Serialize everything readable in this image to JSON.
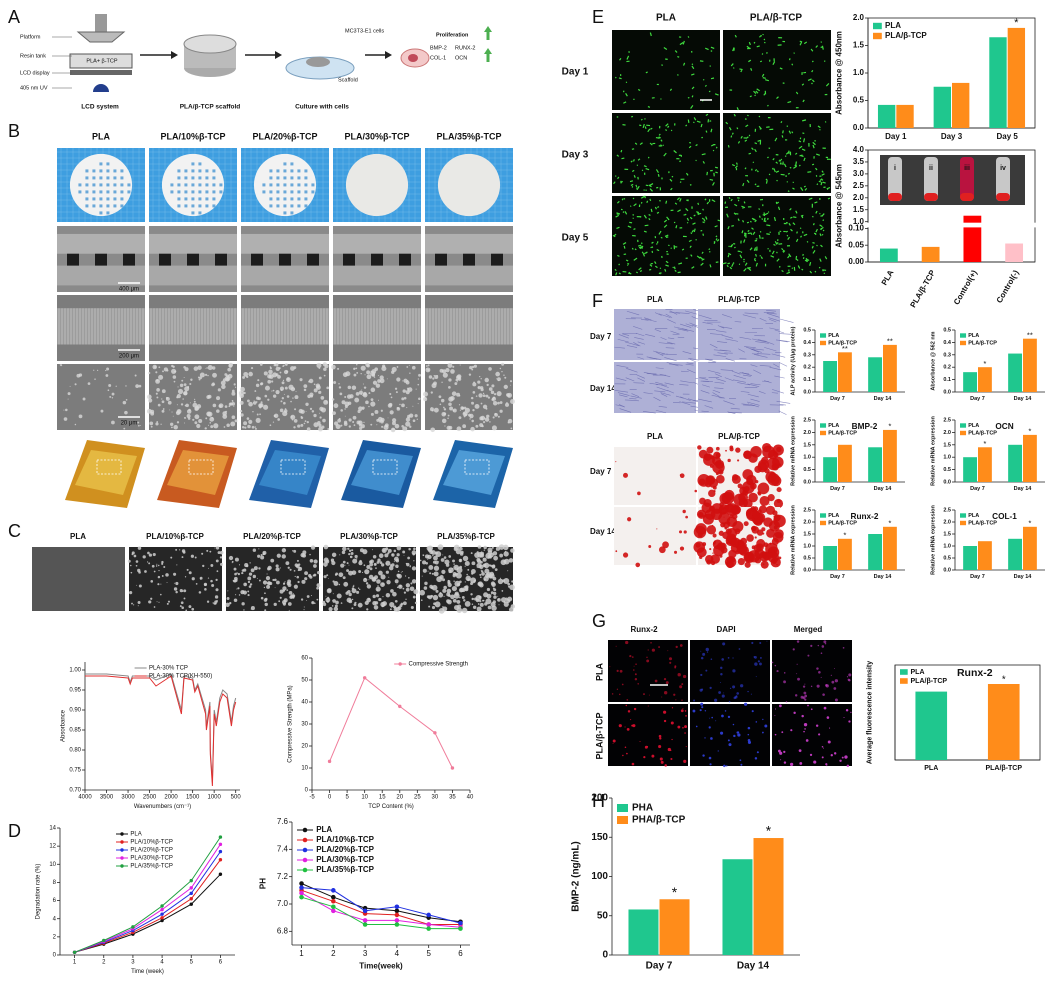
{
  "figure": {
    "panel_labels": [
      "A",
      "B",
      "C",
      "D",
      "E",
      "F",
      "G",
      "H"
    ],
    "a": {
      "platform": "Platform",
      "resin_tank": "Resin tank",
      "resin": "PLA+ β-TCP",
      "lcd": "LCD display",
      "uv": "405 nm UV",
      "system": "LCD system",
      "scaffold_step": "PLA/β-TCP scaffold",
      "cells": "MC3T3-E1 cells",
      "scaffold": "Scaffold",
      "culture": "Culture with cells",
      "proliferation": "Proliferation",
      "markers": [
        "BMP-2",
        "RUNX-2",
        "COL-1",
        "OCN"
      ]
    },
    "b": {
      "columns": [
        "PLA",
        "PLA/10%β-TCP",
        "PLA/20%β-TCP",
        "PLA/30%β-TCP",
        "PLA/35%β-TCP"
      ],
      "scale_bars": [
        "400 μm",
        "200 μm",
        "20 μm"
      ]
    },
    "c": {
      "columns": [
        "PLA",
        "PLA/10%β-TCP",
        "PLA/20%β-TCP",
        "PLA/30%β-TCP",
        "PLA/35%β-TCP"
      ]
    },
    "e": {
      "columns": [
        "PLA",
        "PLA/β-TCP"
      ],
      "rows": [
        "Day 1",
        "Day 3",
        "Day 5"
      ],
      "inset": [
        "i",
        "ii",
        "iii",
        "iv"
      ]
    },
    "f": {
      "columns": [
        "PLA",
        "PLA/β-TCP"
      ],
      "rows": [
        "Day 7",
        "Day 14"
      ]
    },
    "g": {
      "columns": [
        "Runx-2",
        "DAPI",
        "Merged"
      ],
      "rows": [
        "PLA",
        "PLA/β-TCP"
      ]
    }
  },
  "chart_data": [
    {
      "type": "line",
      "x": [
        4000,
        3500,
        3000,
        2950,
        2900,
        2500,
        2350,
        2000,
        1760,
        1700,
        1500,
        1450,
        1380,
        1200,
        1180,
        1100,
        1090,
        1040,
        1000,
        950,
        870,
        800,
        700,
        600,
        550,
        500
      ],
      "series": [
        {
          "name": "PLA-30% TCP",
          "color": "#888888",
          "values": [
            0.99,
            0.99,
            0.985,
            0.97,
            0.985,
            0.985,
            0.975,
            0.99,
            0.9,
            0.985,
            0.98,
            0.95,
            0.965,
            0.9,
            0.86,
            0.92,
            0.8,
            0.72,
            0.9,
            0.87,
            0.93,
            0.95,
            0.94,
            0.87,
            0.91,
            0.93
          ]
        },
        {
          "name": "PLA-30% TCP(KH-550)",
          "color": "#e03030",
          "values": [
            0.985,
            0.985,
            0.98,
            0.965,
            0.98,
            0.98,
            0.96,
            0.985,
            0.89,
            0.98,
            0.975,
            0.945,
            0.96,
            0.89,
            0.85,
            0.91,
            0.79,
            0.71,
            0.89,
            0.86,
            0.92,
            0.94,
            0.93,
            0.86,
            0.9,
            0.92
          ]
        }
      ],
      "xlim": [
        4000,
        400
      ],
      "xticks": [
        4000,
        3500,
        3000,
        2500,
        2000,
        1500,
        1000,
        500
      ],
      "ylim": [
        0.7,
        1.02
      ],
      "yticks": [
        {
          "value": 0.7,
          "label": "0.70"
        },
        0.75,
        {
          "value": 0.8,
          "label": "0.80"
        },
        0.85,
        {
          "value": 0.9,
          "label": "0.90"
        },
        0.95,
        {
          "value": 1,
          "label": "1.00"
        }
      ],
      "xlabel": "Wavenumbers (cm⁻¹)",
      "ylabel": "Absorbance",
      "legend": "upper center"
    },
    {
      "type": "line",
      "x": [
        0,
        10,
        20,
        30,
        35
      ],
      "series": [
        {
          "name": "Compressive Strength",
          "color": "#f07c9a",
          "values": [
            13,
            51,
            38,
            26,
            10
          ]
        }
      ],
      "markers": true,
      "xlim": [
        -5,
        40
      ],
      "xticks": [
        -5,
        0,
        5,
        10,
        15,
        20,
        25,
        30,
        35,
        40
      ],
      "ylim": [
        0,
        60
      ],
      "yticks": [
        0,
        10,
        20,
        30,
        40,
        50,
        60
      ],
      "xlabel": "TCP Content (%)",
      "ylabel": "Compressive Strength (MPa)",
      "legend": "upper right"
    },
    {
      "type": "line",
      "x": [
        1,
        2,
        3,
        4,
        5,
        6
      ],
      "markers": true,
      "series": [
        {
          "name": "PLA",
          "color": "#111111",
          "values": [
            0.3,
            1.2,
            2.3,
            3.8,
            5.6,
            8.9
          ]
        },
        {
          "name": "PLA/10%β-TCP",
          "color": "#e02020",
          "values": [
            0.3,
            1.3,
            2.5,
            4.1,
            6.2,
            10.5
          ]
        },
        {
          "name": "PLA/20%β-TCP",
          "color": "#2030e0",
          "values": [
            0.3,
            1.4,
            2.7,
            4.5,
            6.8,
            11.4
          ]
        },
        {
          "name": "PLA/30%β-TCP",
          "color": "#e020e0",
          "values": [
            0.3,
            1.5,
            2.9,
            5,
            7.4,
            12.2
          ]
        },
        {
          "name": "PLA/35%β-TCP",
          "color": "#20a040",
          "values": [
            0.3,
            1.6,
            3.1,
            5.4,
            8.2,
            13
          ]
        }
      ],
      "xlim": [
        0.5,
        6.5
      ],
      "xticks": [
        1,
        2,
        3,
        4,
        5,
        6
      ],
      "ylim": [
        0,
        14
      ],
      "yticks": [
        0,
        2,
        4,
        6,
        8,
        10,
        12,
        14
      ],
      "xlabel": "Time (week)",
      "ylabel": "Degradation rate (%)",
      "legend": "upper center"
    },
    {
      "type": "line",
      "x": [
        1,
        2,
        3,
        4,
        5,
        6
      ],
      "markers": true,
      "series": [
        {
          "name": "PLA",
          "color": "#111111",
          "values": [
            7.15,
            7.05,
            6.97,
            6.95,
            6.9,
            6.87
          ]
        },
        {
          "name": "PLA/10%β-TCP",
          "color": "#e02020",
          "values": [
            7.1,
            7.02,
            6.93,
            6.92,
            6.85,
            6.85
          ]
        },
        {
          "name": "PLA/20%β-TCP",
          "color": "#2030e0",
          "values": [
            7.12,
            7.1,
            6.95,
            6.98,
            6.92,
            6.86
          ]
        },
        {
          "name": "PLA/30%β-TCP",
          "color": "#e020e0",
          "values": [
            7.08,
            6.95,
            6.88,
            6.88,
            6.85,
            6.83
          ]
        },
        {
          "name": "PLA/35%β-TCP",
          "color": "#20c040",
          "values": [
            7.05,
            6.98,
            6.85,
            6.85,
            6.82,
            6.82
          ]
        }
      ],
      "xlim": [
        0.7,
        6.3
      ],
      "xticks": [
        1,
        2,
        3,
        4,
        5,
        6
      ],
      "ylim": [
        6.7,
        7.6
      ],
      "yticks": [
        6.8,
        {
          "value": 7,
          "label": "7.0"
        },
        7.2,
        7.4,
        7.6
      ],
      "xlabel": "Time(week)",
      "ylabel": "PH",
      "legend": "upper left"
    },
    {
      "type": "bar",
      "categories": [
        "Day 1",
        "Day 3",
        "Day 5"
      ],
      "series": [
        {
          "name": "PLA",
          "color": "#1fc78e",
          "values": [
            0.42,
            0.75,
            1.65
          ]
        },
        {
          "name": "PLA/β-TCP",
          "color": "#ff8c1a",
          "values": [
            0.42,
            0.82,
            1.82
          ],
          "annotations": [
            null,
            null,
            "*"
          ]
        }
      ],
      "ylim": [
        0,
        2
      ],
      "yticks": [
        {
          "value": 0,
          "label": "0.0"
        },
        0.5,
        {
          "value": 1,
          "label": "1.0"
        },
        1.5,
        {
          "value": 2,
          "label": "2.0"
        }
      ],
      "ylabel": "Absorbance @ 450nm",
      "legend": "upper left"
    },
    {
      "type": "bar",
      "categories": [
        "PLA",
        "PLA/β-TCP",
        "Control(+)",
        "Control(-)"
      ],
      "series": [
        {
          "values": [
            0.04,
            0.045,
            1.25,
            0.055
          ],
          "colors": [
            "#1fc78e",
            "#ff8c1a",
            "#ff0000",
            "#ffc0c8"
          ]
        }
      ],
      "ylim": [
        0,
        4
      ],
      "ybreak": [
        0.1,
        1
      ],
      "yticks": [
        {
          "value": 0,
          "label": "0.00"
        },
        0.05,
        {
          "value": 0.1,
          "label": "0.10"
        },
        {
          "value": 1,
          "label": "1.0"
        },
        1.5,
        {
          "value": 2,
          "label": "2.0"
        },
        2.5,
        {
          "value": 3,
          "label": "3.0"
        },
        3.5,
        {
          "value": 4,
          "label": "4.0"
        }
      ],
      "ylabel": "Absorbance @ 545nm"
    },
    {
      "type": "bar",
      "categories": [
        "Day 7",
        "Day 14"
      ],
      "series": [
        {
          "name": "PLA",
          "color": "#1fc78e",
          "values": [
            0.25,
            0.28
          ]
        },
        {
          "name": "PLA/β-TCP",
          "color": "#ff8c1a",
          "values": [
            0.32,
            0.38
          ],
          "annotations": [
            "**",
            "**"
          ]
        }
      ],
      "ylim": [
        0,
        0.5
      ],
      "yticks": [
        {
          "value": 0,
          "label": "0.0"
        },
        0.1,
        0.2,
        0.3,
        0.4,
        0.5
      ],
      "ylabel": "ALP activity (U/μg protein)",
      "legend": "upper left"
    },
    {
      "type": "bar",
      "categories": [
        "Day 7",
        "Day 14"
      ],
      "series": [
        {
          "name": "PLA",
          "color": "#1fc78e",
          "values": [
            0.16,
            0.31
          ]
        },
        {
          "name": "PLA/β-TCP",
          "color": "#ff8c1a",
          "values": [
            0.2,
            0.43
          ],
          "annotations": [
            "*",
            "**"
          ]
        }
      ],
      "ylim": [
        0,
        0.5
      ],
      "yticks": [
        {
          "value": 0,
          "label": "0.0"
        },
        0.1,
        0.2,
        0.3,
        0.4,
        0.5
      ],
      "ylabel": "Absorbance @ 562 nm",
      "legend": "upper left"
    },
    {
      "type": "bar",
      "title": "BMP-2",
      "categories": [
        "Day 7",
        "Day 14"
      ],
      "series": [
        {
          "name": "PLA",
          "color": "#1fc78e",
          "values": [
            1,
            1.4
          ]
        },
        {
          "name": "PLA/β-TCP",
          "color": "#ff8c1a",
          "values": [
            1.5,
            2.1
          ],
          "annotations": [
            null,
            "*"
          ]
        }
      ],
      "ylim": [
        0,
        2.5
      ],
      "yticks": [
        {
          "value": 0,
          "label": "0.0"
        },
        0.5,
        {
          "value": 1,
          "label": "1.0"
        },
        1.5,
        {
          "value": 2,
          "label": "2.0"
        },
        2.5
      ],
      "ylabel": "Relative mRNA expression",
      "legend": "upper left"
    },
    {
      "type": "bar",
      "title": "OCN",
      "categories": [
        "Day 7",
        "Day 14"
      ],
      "series": [
        {
          "name": "PLA",
          "color": "#1fc78e",
          "values": [
            1,
            1.5
          ]
        },
        {
          "name": "PLA/β-TCP",
          "color": "#ff8c1a",
          "values": [
            1.4,
            1.9
          ],
          "annotations": [
            "*",
            "*"
          ]
        }
      ],
      "ylim": [
        0,
        2.5
      ],
      "yticks": [
        {
          "value": 0,
          "label": "0.0"
        },
        0.5,
        {
          "value": 1,
          "label": "1.0"
        },
        1.5,
        {
          "value": 2,
          "label": "2.0"
        },
        2.5
      ],
      "ylabel": "Relative mRNA expression",
      "legend": "upper left"
    },
    {
      "type": "bar",
      "title": "Runx-2",
      "categories": [
        "Day 7",
        "Day 14"
      ],
      "series": [
        {
          "name": "PLA",
          "color": "#1fc78e",
          "values": [
            1,
            1.5
          ]
        },
        {
          "name": "PLA/β-TCP",
          "color": "#ff8c1a",
          "values": [
            1.3,
            1.8
          ],
          "annotations": [
            "*",
            "*"
          ]
        }
      ],
      "ylim": [
        0,
        2.5
      ],
      "yticks": [
        {
          "value": 0,
          "label": "0.0"
        },
        0.5,
        {
          "value": 1,
          "label": "1.0"
        },
        1.5,
        {
          "value": 2,
          "label": "2.0"
        },
        2.5
      ],
      "ylabel": "Relative mRNA expression",
      "legend": "upper left"
    },
    {
      "type": "bar",
      "title": "COL-1",
      "categories": [
        "Day 7",
        "Day 14"
      ],
      "series": [
        {
          "name": "PLA",
          "color": "#1fc78e",
          "values": [
            1,
            1.3
          ]
        },
        {
          "name": "PLA/β-TCP",
          "color": "#ff8c1a",
          "values": [
            1.2,
            1.8
          ],
          "annotations": [
            null,
            "*"
          ]
        }
      ],
      "ylim": [
        0,
        2.5
      ],
      "yticks": [
        {
          "value": 0,
          "label": "0.0"
        },
        0.5,
        {
          "value": 1,
          "label": "1.0"
        },
        1.5,
        {
          "value": 2,
          "label": "2.0"
        },
        2.5
      ],
      "ylabel": "Relative mRNA expression",
      "legend": "upper left"
    },
    {
      "type": "bar",
      "title": "Runx-2",
      "categories": [
        "PLA",
        "PLA/β-TCP"
      ],
      "series": [
        {
          "values": [
            72,
            80
          ],
          "colors": [
            "#1fc78e",
            "#ff8c1a"
          ],
          "annotations": [
            null,
            "*"
          ]
        }
      ],
      "ylim": [
        0,
        100
      ],
      "ylabel": "Average fluorescence intensity",
      "legend": "upper left"
    },
    {
      "type": "bar",
      "categories": [
        "Day 7",
        "Day 14"
      ],
      "series": [
        {
          "name": "PHA",
          "color": "#1fc78e",
          "values": [
            58,
            122
          ]
        },
        {
          "name": "PHA/β-TCP",
          "color": "#ff8c1a",
          "values": [
            71,
            149
          ],
          "annotations": [
            "*",
            "*"
          ]
        }
      ],
      "ylim": [
        0,
        200
      ],
      "yticks": [
        0,
        50,
        100,
        150,
        200
      ],
      "ylabel": "BMP-2 (ng/mL)",
      "legend": "upper left"
    }
  ]
}
